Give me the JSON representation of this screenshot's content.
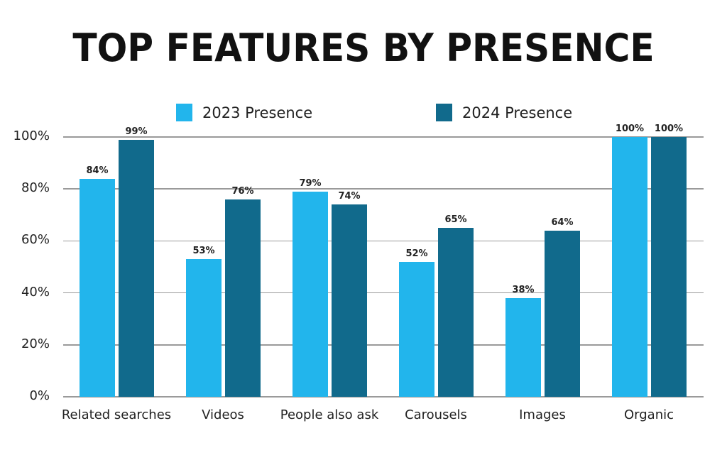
{
  "chart_data": {
    "type": "bar",
    "title": "TOP FEATURES BY PRESENCE",
    "xlabel": "",
    "ylabel": "",
    "ylim": [
      0,
      100
    ],
    "y_ticks": [
      "0%",
      "20%",
      "40%",
      "60%",
      "80%",
      "100%"
    ],
    "grid": true,
    "legend_position": "top",
    "categories": [
      "Related searches",
      "Videos",
      "People also ask",
      "Carousels",
      "Images",
      "Organic"
    ],
    "series": [
      {
        "name": "2023 Presence",
        "color": "#22b5ec",
        "values": [
          84,
          53,
          79,
          52,
          38,
          100
        ],
        "labels": [
          "84%",
          "53%",
          "79%",
          "52%",
          "38%",
          "100%"
        ]
      },
      {
        "name": "2024 Presence",
        "color": "#116a8c",
        "values": [
          99,
          76,
          74,
          65,
          64,
          100
        ],
        "labels": [
          "99%",
          "76%",
          "74%",
          "65%",
          "64%",
          "100%"
        ]
      }
    ]
  }
}
